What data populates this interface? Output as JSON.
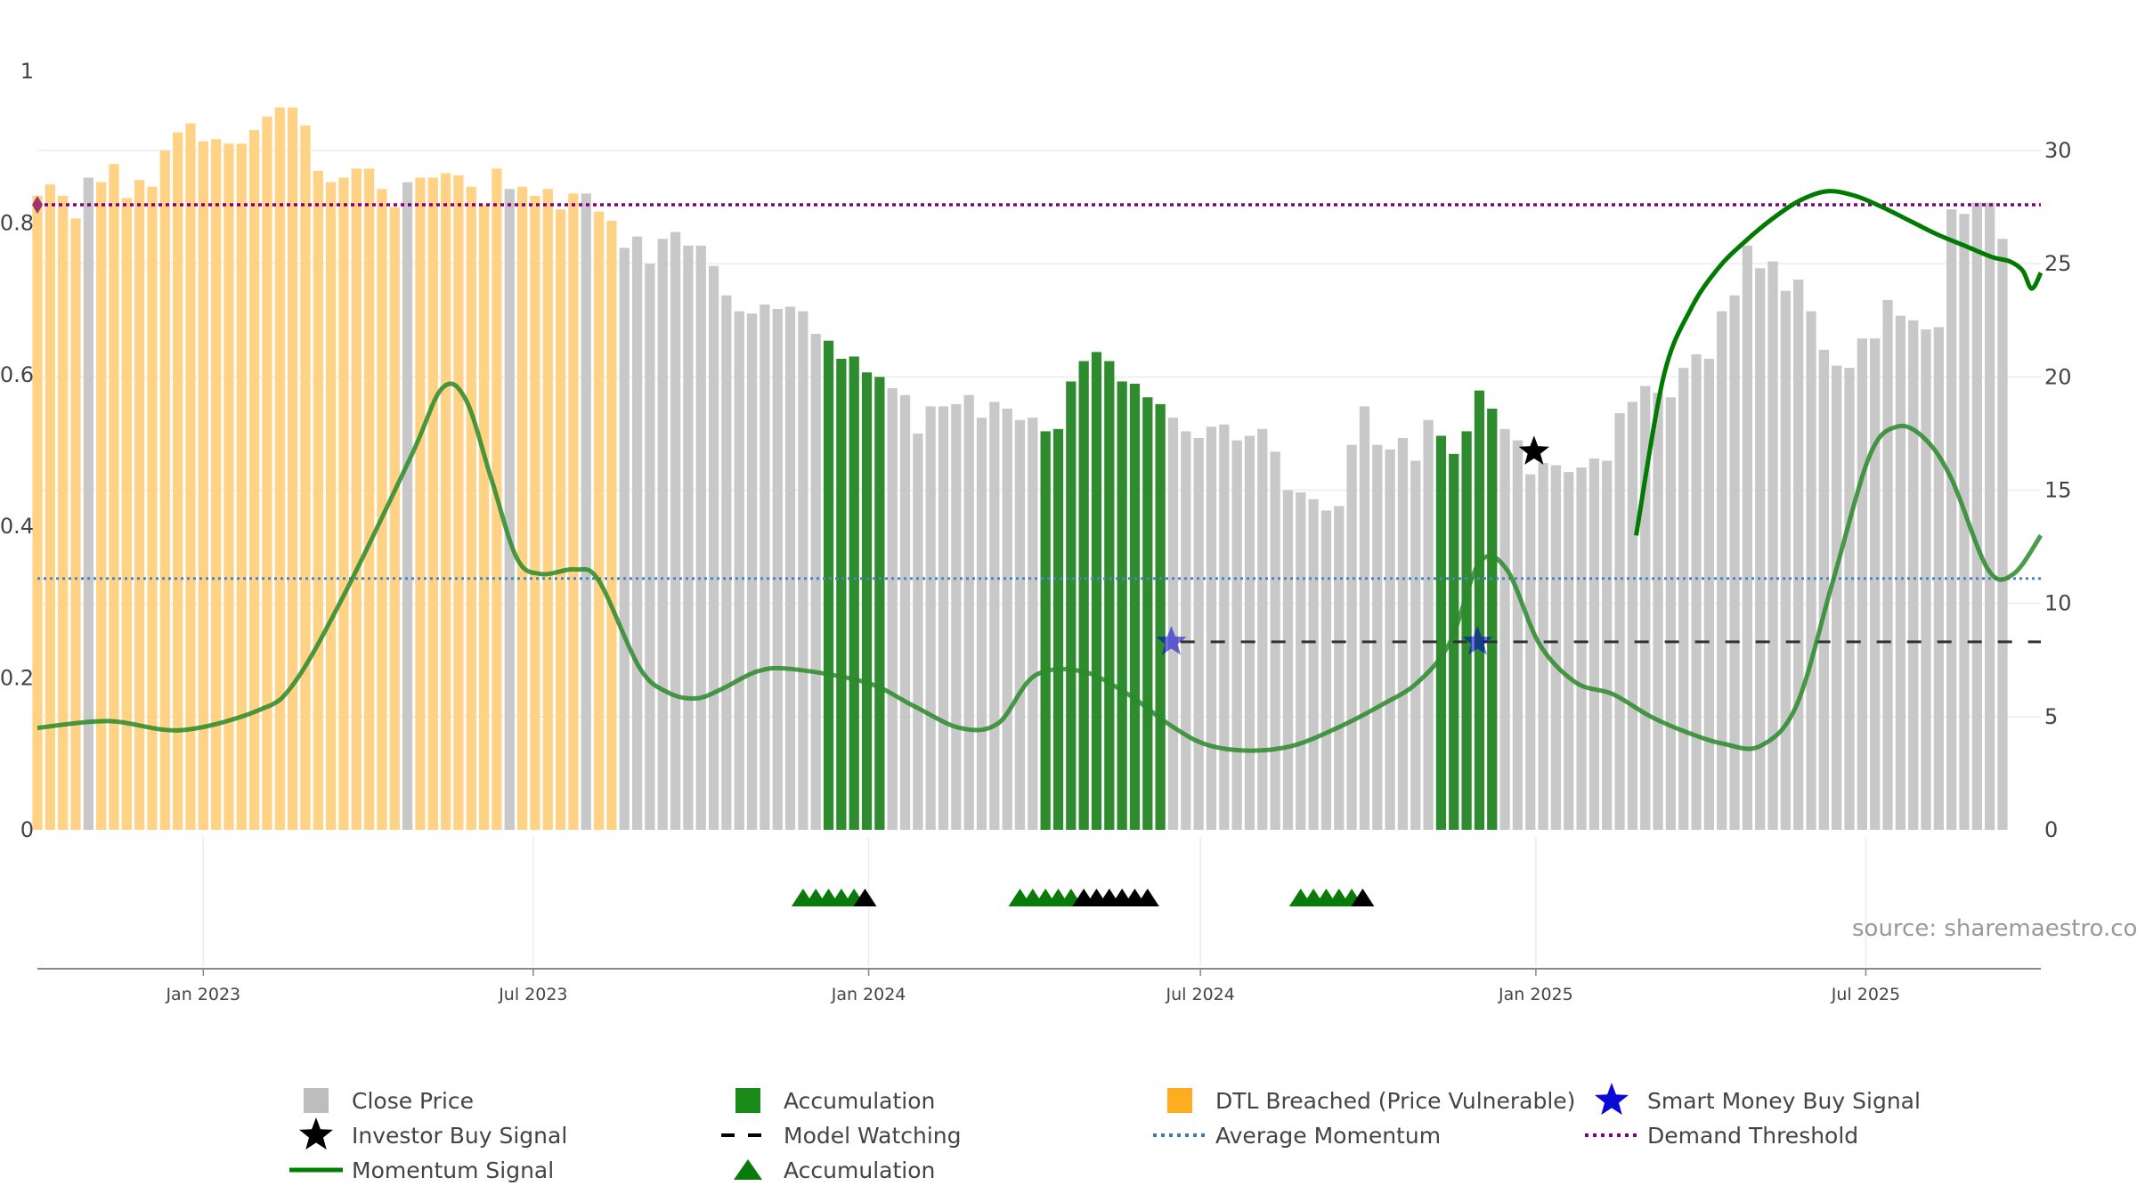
{
  "colors": {
    "close_price": "#c8c8c8",
    "accumulation": "#2e8b2e",
    "dtl_breached": "#ffd285",
    "momentum": "#2a8a2a",
    "momentum_dark": "#007a00",
    "avg_momentum": "#4a86c0",
    "demand_threshold": "#800080",
    "model_watching": "#333333",
    "smart_money": "#0000cc",
    "investor": "#000000"
  },
  "source_text": "source: sharemaestro.com",
  "legend": [
    {
      "key": "close_price",
      "label": "Close Price",
      "symbol": "square",
      "color": "#bdbdbd"
    },
    {
      "key": "accumulation_bar",
      "label": "Accumulation",
      "symbol": "square",
      "color": "#1a8a1a"
    },
    {
      "key": "dtl",
      "label": "DTL Breached (Price Vulnerable)",
      "symbol": "square",
      "color": "#ffad1f"
    },
    {
      "key": "smart_money",
      "label": "Smart Money Buy Signal",
      "symbol": "star",
      "color": "#0a0ad6"
    },
    {
      "key": "investor",
      "label": "Investor Buy Signal",
      "symbol": "star",
      "color": "#000000"
    },
    {
      "key": "model_watching",
      "label": "Model Watching",
      "symbol": "dash",
      "color": "#000000"
    },
    {
      "key": "avg_momentum",
      "label": "Average Momentum",
      "symbol": "dot",
      "color": "#3a7ab5"
    },
    {
      "key": "demand_threshold",
      "label": "Demand Threshold",
      "symbol": "dotpurple",
      "color": "#800080"
    },
    {
      "key": "momentum_signal",
      "label": "Momentum Signal",
      "symbol": "line",
      "color": "#008000"
    },
    {
      "key": "accumulation_tri",
      "label": "Accumulation",
      "symbol": "triangle",
      "color": "#0a7a0a"
    }
  ],
  "chart_data": {
    "type": "bar",
    "x_axis": {
      "range": [
        "2022-10-02",
        "2025-10-05"
      ],
      "ticks": [
        {
          "date": "2023-01-01",
          "label": "Jan 2023"
        },
        {
          "date": "2023-07-01",
          "label": "Jul 2023"
        },
        {
          "date": "2024-01-01",
          "label": "Jan 2024"
        },
        {
          "date": "2024-07-01",
          "label": "Jul 2024"
        },
        {
          "date": "2025-01-01",
          "label": "Jan 2025"
        },
        {
          "date": "2025-07-01",
          "label": "Jul 2025"
        }
      ]
    },
    "left_axis": {
      "range": [
        0,
        1
      ],
      "ticks": [
        0,
        0.2,
        0.4,
        0.6,
        0.8
      ],
      "top_label": "1"
    },
    "right_axis": {
      "range": [
        0,
        33.5
      ],
      "ticks": [
        0,
        5,
        10,
        15,
        20,
        25,
        30
      ]
    },
    "bar_start_date": "2022-10-02",
    "bar_interval_days": 7,
    "bar_width_days": 5.5,
    "close_price": [
      28.0,
      28.5,
      28.0,
      27.0,
      28.8,
      28.6,
      29.4,
      27.9,
      28.7,
      28.4,
      30.0,
      30.8,
      31.2,
      30.4,
      30.5,
      30.3,
      30.3,
      30.9,
      31.5,
      31.9,
      31.9,
      31.1,
      29.1,
      28.6,
      28.8,
      29.2,
      29.2,
      28.3,
      27.5,
      28.6,
      28.8,
      28.8,
      29.0,
      28.9,
      28.4,
      27.6,
      29.2,
      28.3,
      28.4,
      28.0,
      28.3,
      27.4,
      28.1,
      28.1,
      27.3,
      26.9,
      25.7,
      26.2,
      25.0,
      26.1,
      26.4,
      25.8,
      25.8,
      24.9,
      23.6,
      22.9,
      22.8,
      23.2,
      23.0,
      23.1,
      22.9,
      21.9,
      21.6,
      20.8,
      20.9,
      20.2,
      20.0,
      19.5,
      19.2,
      17.5,
      18.7,
      18.7,
      18.8,
      19.2,
      18.2,
      18.9,
      18.6,
      18.1,
      18.2,
      17.6,
      17.7,
      19.8,
      20.7,
      21.1,
      20.7,
      19.8,
      19.7,
      19.1,
      18.8,
      18.2,
      17.6,
      17.3,
      17.8,
      17.9,
      17.2,
      17.4,
      17.7,
      16.7,
      15.0,
      14.9,
      14.6,
      14.1,
      14.3,
      17.0,
      18.7,
      17.0,
      16.8,
      17.3,
      16.3,
      18.1,
      17.4,
      16.6,
      17.6,
      19.4,
      18.6,
      17.7,
      17.2,
      15.7,
      16.2,
      16.1,
      15.8,
      16.0,
      16.4,
      16.3,
      18.4,
      18.9,
      19.6,
      19.3,
      19.1,
      20.4,
      21.0,
      20.8,
      22.9,
      23.6,
      25.8,
      24.8,
      25.1,
      23.8,
      24.3,
      22.9,
      21.2,
      20.5,
      20.4,
      21.7,
      21.7,
      23.4,
      22.7,
      22.5,
      22.1,
      22.2,
      27.4,
      27.2,
      27.7,
      27.7,
      26.1
    ],
    "bar_highlight_segments": [
      {
        "type": "dtl",
        "start_index": 0,
        "end_index": 45
      },
      {
        "type": "accumulation",
        "start_index": 62,
        "end_index": 66
      },
      {
        "type": "accumulation",
        "start_index": 79,
        "end_index": 88
      },
      {
        "type": "accumulation",
        "start_index": 110,
        "end_index": 114
      }
    ],
    "bar_gray_exceptions": [
      4,
      29,
      37,
      43
    ],
    "momentum_signal": [
      {
        "date": "2022-10-02",
        "value": 4.5
      },
      {
        "date": "2022-11-10",
        "value": 4.8
      },
      {
        "date": "2022-12-20",
        "value": 4.4
      },
      {
        "date": "2023-02-01",
        "value": 5.3
      },
      {
        "date": "2023-02-20",
        "value": 6.5
      },
      {
        "date": "2023-03-20",
        "value": 10.5
      },
      {
        "date": "2023-04-25",
        "value": 16.5
      },
      {
        "date": "2023-05-12",
        "value": 19.5
      },
      {
        "date": "2023-05-25",
        "value": 19.0
      },
      {
        "date": "2023-06-08",
        "value": 15.5
      },
      {
        "date": "2023-06-22",
        "value": 12.0
      },
      {
        "date": "2023-07-05",
        "value": 11.3
      },
      {
        "date": "2023-07-24",
        "value": 11.5
      },
      {
        "date": "2023-08-06",
        "value": 11.0
      },
      {
        "date": "2023-08-28",
        "value": 7.2
      },
      {
        "date": "2023-09-12",
        "value": 6.1
      },
      {
        "date": "2023-09-28",
        "value": 5.8
      },
      {
        "date": "2023-10-12",
        "value": 6.2
      },
      {
        "date": "2023-11-01",
        "value": 7.0
      },
      {
        "date": "2023-11-20",
        "value": 7.1
      },
      {
        "date": "2023-12-31",
        "value": 6.5
      },
      {
        "date": "2024-01-25",
        "value": 5.5
      },
      {
        "date": "2024-02-20",
        "value": 4.5
      },
      {
        "date": "2024-03-12",
        "value": 4.7
      },
      {
        "date": "2024-04-01",
        "value": 6.8
      },
      {
        "date": "2024-04-27",
        "value": 7.0
      },
      {
        "date": "2024-05-22",
        "value": 6.0
      },
      {
        "date": "2024-06-13",
        "value": 4.7
      },
      {
        "date": "2024-07-03",
        "value": 3.8
      },
      {
        "date": "2024-07-26",
        "value": 3.5
      },
      {
        "date": "2024-08-20",
        "value": 3.7
      },
      {
        "date": "2024-09-14",
        "value": 4.5
      },
      {
        "date": "2024-10-08",
        "value": 5.5
      },
      {
        "date": "2024-10-28",
        "value": 6.5
      },
      {
        "date": "2024-11-15",
        "value": 8.3
      },
      {
        "date": "2024-12-01",
        "value": 11.8
      },
      {
        "date": "2024-12-16",
        "value": 11.5
      },
      {
        "date": "2025-01-03",
        "value": 8.2
      },
      {
        "date": "2025-01-23",
        "value": 6.5
      },
      {
        "date": "2025-02-12",
        "value": 6.0
      },
      {
        "date": "2025-03-05",
        "value": 5.0
      },
      {
        "date": "2025-03-25",
        "value": 4.3
      },
      {
        "date": "2025-04-14",
        "value": 3.8
      },
      {
        "date": "2025-05-04",
        "value": 3.7
      },
      {
        "date": "2025-05-24",
        "value": 5.5
      },
      {
        "date": "2025-06-13",
        "value": 11.0
      },
      {
        "date": "2025-07-03",
        "value": 16.5
      },
      {
        "date": "2025-07-18",
        "value": 17.8
      },
      {
        "date": "2025-08-02",
        "value": 17.3
      },
      {
        "date": "2025-08-17",
        "value": 15.5
      },
      {
        "date": "2025-09-06",
        "value": 11.5
      },
      {
        "date": "2025-09-20",
        "value": 11.3
      },
      {
        "date": "2025-10-05",
        "value": 13.0
      }
    ],
    "momentum_signal_tail": [
      {
        "date": "2025-02-25",
        "value": 13.0
      },
      {
        "date": "2025-03-12",
        "value": 20.0
      },
      {
        "date": "2025-03-27",
        "value": 23.0
      },
      {
        "date": "2025-04-11",
        "value": 24.8
      },
      {
        "date": "2025-04-26",
        "value": 26.0
      },
      {
        "date": "2025-05-11",
        "value": 27.0
      },
      {
        "date": "2025-05-26",
        "value": 27.8
      },
      {
        "date": "2025-06-10",
        "value": 28.2
      },
      {
        "date": "2025-06-25",
        "value": 28.0
      },
      {
        "date": "2025-07-10",
        "value": 27.5
      },
      {
        "date": "2025-07-25",
        "value": 26.9
      },
      {
        "date": "2025-08-09",
        "value": 26.3
      },
      {
        "date": "2025-08-24",
        "value": 25.8
      },
      {
        "date": "2025-09-08",
        "value": 25.3
      },
      {
        "date": "2025-09-18",
        "value": 25.1
      },
      {
        "date": "2025-09-25",
        "value": 24.7
      },
      {
        "date": "2025-09-30",
        "value": 23.9
      },
      {
        "date": "2025-10-05",
        "value": 24.6
      }
    ],
    "average_momentum": 11.1,
    "demand_threshold": 27.6,
    "model_watching": {
      "from": "2024-06-20",
      "to": "2025-10-05",
      "value": 8.3
    },
    "smart_money_signals": [
      {
        "date": "2024-06-15",
        "value": 8.3
      },
      {
        "date": "2024-11-30",
        "value": 8.3
      }
    ],
    "investor_signals": [
      {
        "date": "2024-12-31",
        "value": 16.7
      }
    ],
    "accumulation_triangles": [
      {
        "from": "2023-11-26",
        "to": "2023-12-24",
        "color": "green"
      },
      {
        "from": "2023-12-30",
        "to": "2024-01-03",
        "color": "black"
      },
      {
        "from": "2024-03-24",
        "to": "2024-04-21",
        "color": "green"
      },
      {
        "from": "2024-04-28",
        "to": "2024-06-02",
        "color": "black"
      },
      {
        "from": "2024-08-25",
        "to": "2024-09-22",
        "color": "green"
      },
      {
        "from": "2024-09-28",
        "to": "2024-10-02",
        "color": "black"
      }
    ]
  }
}
